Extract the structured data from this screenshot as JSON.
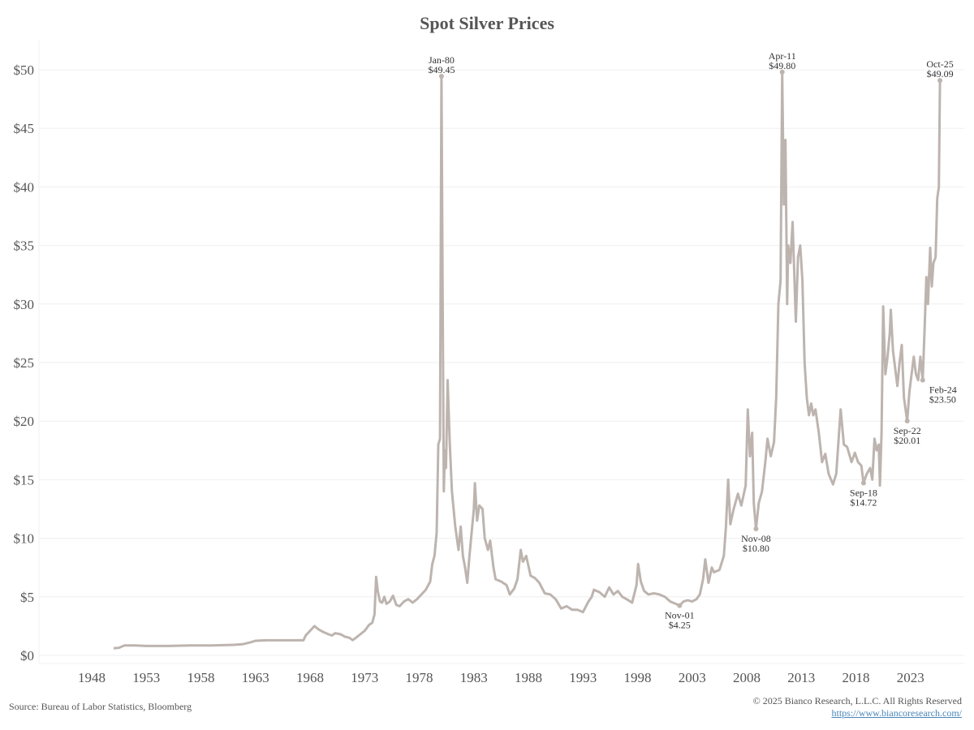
{
  "chart_data": {
    "type": "line",
    "title": "Spot Silver Prices",
    "xlabel": "",
    "ylabel": "",
    "xlim": [
      1946,
      2027.5
    ],
    "ylim": [
      0,
      52
    ],
    "grid": true,
    "x_ticks": [
      1948,
      1953,
      1958,
      1963,
      1968,
      1973,
      1978,
      1983,
      1988,
      1993,
      1998,
      2003,
      2008,
      2013,
      2018,
      2023
    ],
    "x_tick_labels": [
      "1948",
      "1953",
      "1958",
      "1963",
      "1968",
      "1973",
      "1978",
      "1983",
      "1988",
      "1993",
      "1998",
      "2003",
      "2008",
      "2013",
      "2018",
      "2023"
    ],
    "y_ticks": [
      0,
      5,
      10,
      15,
      20,
      25,
      30,
      35,
      40,
      45,
      50
    ],
    "y_tick_labels": [
      "$0",
      "$5",
      "$10",
      "$15",
      "$20",
      "$25",
      "$30",
      "$35",
      "$40",
      "$45",
      "$50"
    ],
    "series": [
      {
        "name": "Spot Silver",
        "color": "#bdb4af",
        "points": [
          [
            1950.0,
            0.6
          ],
          [
            1950.5,
            0.65
          ],
          [
            1951,
            0.85
          ],
          [
            1952,
            0.85
          ],
          [
            1953,
            0.8
          ],
          [
            1955,
            0.8
          ],
          [
            1957,
            0.85
          ],
          [
            1959,
            0.85
          ],
          [
            1961,
            0.9
          ],
          [
            1961.8,
            0.95
          ],
          [
            1962.5,
            1.1
          ],
          [
            1963,
            1.25
          ],
          [
            1964,
            1.29
          ],
          [
            1967.4,
            1.29
          ],
          [
            1967.6,
            1.7
          ],
          [
            1968,
            2.1
          ],
          [
            1968.4,
            2.5
          ],
          [
            1968.8,
            2.2
          ],
          [
            1969.2,
            2.0
          ],
          [
            1969.7,
            1.8
          ],
          [
            1970,
            1.7
          ],
          [
            1970.3,
            1.9
          ],
          [
            1970.8,
            1.8
          ],
          [
            1971.2,
            1.6
          ],
          [
            1971.6,
            1.5
          ],
          [
            1971.9,
            1.3
          ],
          [
            1972.2,
            1.5
          ],
          [
            1972.6,
            1.8
          ],
          [
            1973,
            2.1
          ],
          [
            1973.4,
            2.6
          ],
          [
            1973.7,
            2.8
          ],
          [
            1973.9,
            3.5
          ],
          [
            1974.05,
            6.7
          ],
          [
            1974.2,
            5.5
          ],
          [
            1974.4,
            4.6
          ],
          [
            1974.6,
            4.5
          ],
          [
            1974.8,
            5
          ],
          [
            1975,
            4.4
          ],
          [
            1975.3,
            4.6
          ],
          [
            1975.6,
            5.1
          ],
          [
            1975.9,
            4.3
          ],
          [
            1976.2,
            4.2
          ],
          [
            1976.6,
            4.6
          ],
          [
            1977,
            4.8
          ],
          [
            1977.4,
            4.5
          ],
          [
            1977.8,
            4.8
          ],
          [
            1978.2,
            5.2
          ],
          [
            1978.6,
            5.6
          ],
          [
            1979,
            6.3
          ],
          [
            1979.2,
            7.8
          ],
          [
            1979.4,
            8.5
          ],
          [
            1979.6,
            10.5
          ],
          [
            1979.75,
            18
          ],
          [
            1979.9,
            18.5
          ],
          [
            1980.04,
            49.45
          ],
          [
            1980.15,
            30
          ],
          [
            1980.25,
            14
          ],
          [
            1980.35,
            17.5
          ],
          [
            1980.45,
            16
          ],
          [
            1980.6,
            23.5
          ],
          [
            1980.8,
            18
          ],
          [
            1981,
            14
          ],
          [
            1981.3,
            11
          ],
          [
            1981.6,
            9
          ],
          [
            1981.8,
            11
          ],
          [
            1982,
            8.5
          ],
          [
            1982.2,
            7.5
          ],
          [
            1982.4,
            6.2
          ],
          [
            1982.6,
            8.5
          ],
          [
            1982.8,
            10.5
          ],
          [
            1983,
            12.5
          ],
          [
            1983.1,
            14.7
          ],
          [
            1983.3,
            11.5
          ],
          [
            1983.5,
            12.8
          ],
          [
            1983.8,
            12.5
          ],
          [
            1984,
            10
          ],
          [
            1984.3,
            9
          ],
          [
            1984.5,
            9.8
          ],
          [
            1984.8,
            7.5
          ],
          [
            1985,
            6.5
          ],
          [
            1985.5,
            6.3
          ],
          [
            1986,
            6
          ],
          [
            1986.3,
            5.2
          ],
          [
            1986.7,
            5.7
          ],
          [
            1987,
            6.5
          ],
          [
            1987.3,
            9
          ],
          [
            1987.5,
            8
          ],
          [
            1987.8,
            8.5
          ],
          [
            1988.2,
            6.8
          ],
          [
            1988.6,
            6.6
          ],
          [
            1989,
            6.2
          ],
          [
            1989.5,
            5.3
          ],
          [
            1990,
            5.2
          ],
          [
            1990.5,
            4.8
          ],
          [
            1991,
            4.0
          ],
          [
            1991.5,
            4.2
          ],
          [
            1992,
            3.9
          ],
          [
            1992.5,
            3.9
          ],
          [
            1993,
            3.7
          ],
          [
            1993.5,
            4.6
          ],
          [
            1993.8,
            5
          ],
          [
            1994,
            5.6
          ],
          [
            1994.5,
            5.4
          ],
          [
            1995,
            5.0
          ],
          [
            1995.4,
            5.8
          ],
          [
            1995.8,
            5.2
          ],
          [
            1996.2,
            5.5
          ],
          [
            1996.6,
            5.0
          ],
          [
            1997,
            4.8
          ],
          [
            1997.5,
            4.5
          ],
          [
            1997.9,
            6.0
          ],
          [
            1998.05,
            7.8
          ],
          [
            1998.3,
            6.3
          ],
          [
            1998.6,
            5.5
          ],
          [
            1999,
            5.2
          ],
          [
            1999.5,
            5.3
          ],
          [
            2000,
            5.2
          ],
          [
            2000.5,
            5.0
          ],
          [
            2001,
            4.6
          ],
          [
            2001.5,
            4.4
          ],
          [
            2001.85,
            4.25
          ],
          [
            2002.2,
            4.6
          ],
          [
            2002.6,
            4.7
          ],
          [
            2003,
            4.6
          ],
          [
            2003.4,
            4.8
          ],
          [
            2003.7,
            5.2
          ],
          [
            2004,
            6.5
          ],
          [
            2004.2,
            8.2
          ],
          [
            2004.5,
            6.2
          ],
          [
            2004.8,
            7.5
          ],
          [
            2005,
            7.1
          ],
          [
            2005.5,
            7.3
          ],
          [
            2005.9,
            8.5
          ],
          [
            2006.1,
            11
          ],
          [
            2006.3,
            15
          ],
          [
            2006.5,
            11.2
          ],
          [
            2006.8,
            12.5
          ],
          [
            2007.2,
            13.8
          ],
          [
            2007.5,
            12.8
          ],
          [
            2007.9,
            14.5
          ],
          [
            2008.1,
            21
          ],
          [
            2008.3,
            17
          ],
          [
            2008.5,
            19
          ],
          [
            2008.65,
            13
          ],
          [
            2008.85,
            10.8
          ],
          [
            2009.1,
            13
          ],
          [
            2009.4,
            14
          ],
          [
            2009.7,
            16.5
          ],
          [
            2009.9,
            18.5
          ],
          [
            2010.2,
            17
          ],
          [
            2010.5,
            18.2
          ],
          [
            2010.7,
            22
          ],
          [
            2010.9,
            30
          ],
          [
            2011.1,
            32
          ],
          [
            2011.25,
            49.8
          ],
          [
            2011.4,
            38.5
          ],
          [
            2011.55,
            44
          ],
          [
            2011.7,
            30
          ],
          [
            2011.8,
            35
          ],
          [
            2012,
            33.5
          ],
          [
            2012.2,
            37
          ],
          [
            2012.5,
            28.5
          ],
          [
            2012.7,
            34
          ],
          [
            2012.9,
            35
          ],
          [
            2013.1,
            32
          ],
          [
            2013.3,
            25
          ],
          [
            2013.5,
            22
          ],
          [
            2013.7,
            20.5
          ],
          [
            2013.9,
            21.5
          ],
          [
            2014.1,
            20.5
          ],
          [
            2014.3,
            21
          ],
          [
            2014.6,
            19
          ],
          [
            2014.9,
            16.5
          ],
          [
            2015.2,
            17.2
          ],
          [
            2015.5,
            15.5
          ],
          [
            2015.9,
            14.6
          ],
          [
            2016.2,
            15.5
          ],
          [
            2016.6,
            21
          ],
          [
            2016.9,
            18
          ],
          [
            2017.2,
            17.8
          ],
          [
            2017.6,
            16.5
          ],
          [
            2017.9,
            17.3
          ],
          [
            2018.2,
            16.5
          ],
          [
            2018.5,
            16.2
          ],
          [
            2018.7,
            14.72
          ],
          [
            2019,
            15.5
          ],
          [
            2019.3,
            16
          ],
          [
            2019.5,
            15
          ],
          [
            2019.7,
            18.5
          ],
          [
            2019.9,
            17.5
          ],
          [
            2020.1,
            18
          ],
          [
            2020.2,
            14.5
          ],
          [
            2020.35,
            19
          ],
          [
            2020.5,
            29.8
          ],
          [
            2020.7,
            24
          ],
          [
            2020.9,
            25.5
          ],
          [
            2021.1,
            27.5
          ],
          [
            2021.2,
            29.5
          ],
          [
            2021.4,
            26
          ],
          [
            2021.6,
            24.5
          ],
          [
            2021.8,
            23
          ],
          [
            2022,
            25
          ],
          [
            2022.2,
            26.5
          ],
          [
            2022.4,
            22
          ],
          [
            2022.7,
            20.01
          ],
          [
            2022.9,
            22.5
          ],
          [
            2023.1,
            24
          ],
          [
            2023.3,
            25.5
          ],
          [
            2023.5,
            24
          ],
          [
            2023.7,
            23.5
          ],
          [
            2023.9,
            25.5
          ],
          [
            2024.12,
            23.5
          ],
          [
            2024.3,
            28
          ],
          [
            2024.45,
            32.3
          ],
          [
            2024.6,
            30
          ],
          [
            2024.8,
            34.8
          ],
          [
            2024.95,
            31.5
          ],
          [
            2025.1,
            33.5
          ],
          [
            2025.3,
            34
          ],
          [
            2025.45,
            39
          ],
          [
            2025.6,
            40
          ],
          [
            2025.7,
            49.09
          ]
        ]
      }
    ],
    "annotations": [
      {
        "date": "Jan-80",
        "value": "$49.45",
        "x": 1980.04,
        "y": 49.45,
        "pos": "above"
      },
      {
        "date": "Nov-01",
        "value": "$4.25",
        "x": 2001.85,
        "y": 4.25,
        "pos": "below"
      },
      {
        "date": "Nov-08",
        "value": "$10.80",
        "x": 2008.85,
        "y": 10.8,
        "pos": "below"
      },
      {
        "date": "Apr-11",
        "value": "$49.80",
        "x": 2011.25,
        "y": 49.8,
        "pos": "above"
      },
      {
        "date": "Sep-18",
        "value": "$14.72",
        "x": 2018.7,
        "y": 14.72,
        "pos": "below"
      },
      {
        "date": "Sep-22",
        "value": "$20.01",
        "x": 2022.7,
        "y": 20.01,
        "pos": "below"
      },
      {
        "date": "Feb-24",
        "value": "$23.50",
        "x": 2024.12,
        "y": 23.5,
        "pos": "below-right"
      },
      {
        "date": "Oct-25",
        "value": "$49.09",
        "x": 2025.7,
        "y": 49.09,
        "pos": "above"
      }
    ]
  },
  "footer": {
    "source": "Source: Bureau of Labor Statistics, Bloomberg",
    "copyright": "© 2025 Bianco Research, L.L.C. All Rights Reserved",
    "link": "https://www.biancoresearch.com/"
  }
}
